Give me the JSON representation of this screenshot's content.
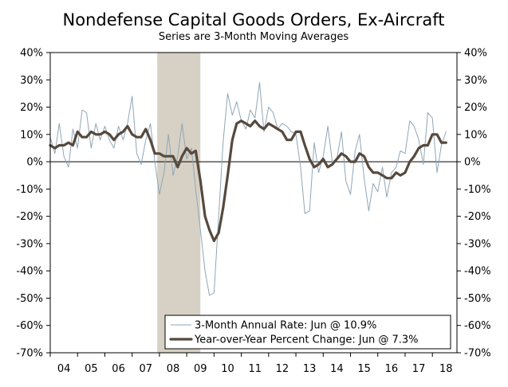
{
  "chart_data": {
    "type": "line",
    "title": "Nondefense Capital Goods Orders, Ex-Aircraft",
    "subtitle": "Series are 3-Month Moving Averages",
    "xlabel": "",
    "ylabel": "",
    "x_ticks": [
      "04",
      "05",
      "06",
      "07",
      "08",
      "09",
      "10",
      "11",
      "12",
      "13",
      "14",
      "15",
      "16",
      "17",
      "18"
    ],
    "x_range": [
      2004,
      2018.9
    ],
    "y_ticks": [
      "40%",
      "30%",
      "20%",
      "10%",
      "0%",
      "-10%",
      "-20%",
      "-30%",
      "-40%",
      "-50%",
      "-60%",
      "-70%"
    ],
    "y_tick_values": [
      40,
      30,
      20,
      10,
      0,
      -10,
      -20,
      -30,
      -40,
      -50,
      -60,
      -70
    ],
    "ylim": [
      -70,
      40
    ],
    "recession": {
      "start": 2007.92,
      "end": 2009.5,
      "color": "#d6d1c4"
    },
    "series": [
      {
        "name": "3-Month Annual Rate: Jun @ 10.9%",
        "color": "#8fa6b6",
        "points": [
          [
            2004.0,
            9
          ],
          [
            2004.17,
            3
          ],
          [
            2004.33,
            14
          ],
          [
            2004.5,
            2
          ],
          [
            2004.67,
            -2
          ],
          [
            2004.83,
            12
          ],
          [
            2005.0,
            5
          ],
          [
            2005.17,
            19
          ],
          [
            2005.33,
            18
          ],
          [
            2005.5,
            5
          ],
          [
            2005.67,
            14
          ],
          [
            2005.83,
            8
          ],
          [
            2006.0,
            13
          ],
          [
            2006.17,
            8
          ],
          [
            2006.33,
            5
          ],
          [
            2006.5,
            13
          ],
          [
            2006.67,
            8
          ],
          [
            2006.83,
            14
          ],
          [
            2007.0,
            24
          ],
          [
            2007.17,
            3
          ],
          [
            2007.33,
            -1
          ],
          [
            2007.5,
            8
          ],
          [
            2007.67,
            14
          ],
          [
            2007.83,
            0
          ],
          [
            2008.0,
            -12
          ],
          [
            2008.17,
            -4
          ],
          [
            2008.33,
            10
          ],
          [
            2008.5,
            -5
          ],
          [
            2008.67,
            2
          ],
          [
            2008.83,
            14
          ],
          [
            2009.0,
            1
          ],
          [
            2009.17,
            5
          ],
          [
            2009.33,
            -10
          ],
          [
            2009.5,
            -25
          ],
          [
            2009.67,
            -40
          ],
          [
            2009.83,
            -49
          ],
          [
            2010.0,
            -48
          ],
          [
            2010.17,
            -20
          ],
          [
            2010.33,
            7
          ],
          [
            2010.5,
            25
          ],
          [
            2010.67,
            17
          ],
          [
            2010.83,
            22
          ],
          [
            2011.0,
            15
          ],
          [
            2011.17,
            12
          ],
          [
            2011.33,
            19
          ],
          [
            2011.5,
            16
          ],
          [
            2011.67,
            29
          ],
          [
            2011.83,
            11
          ],
          [
            2012.0,
            20
          ],
          [
            2012.17,
            18
          ],
          [
            2012.33,
            12
          ],
          [
            2012.5,
            14
          ],
          [
            2012.67,
            13
          ],
          [
            2012.83,
            11
          ],
          [
            2013.0,
            10
          ],
          [
            2013.17,
            -2
          ],
          [
            2013.33,
            -19
          ],
          [
            2013.5,
            -18
          ],
          [
            2013.67,
            7
          ],
          [
            2013.83,
            -4
          ],
          [
            2014.0,
            2
          ],
          [
            2014.17,
            13
          ],
          [
            2014.33,
            0
          ],
          [
            2014.5,
            1
          ],
          [
            2014.67,
            11
          ],
          [
            2014.83,
            -7
          ],
          [
            2015.0,
            -12
          ],
          [
            2015.17,
            4
          ],
          [
            2015.33,
            10
          ],
          [
            2015.5,
            -6
          ],
          [
            2015.67,
            -18
          ],
          [
            2015.83,
            -8
          ],
          [
            2016.0,
            -11
          ],
          [
            2016.17,
            -2
          ],
          [
            2016.33,
            -13
          ],
          [
            2016.5,
            -4
          ],
          [
            2016.67,
            -2
          ],
          [
            2016.83,
            4
          ],
          [
            2017.0,
            3
          ],
          [
            2017.17,
            15
          ],
          [
            2017.33,
            13
          ],
          [
            2017.5,
            8
          ],
          [
            2017.67,
            -1
          ],
          [
            2017.83,
            18
          ],
          [
            2018.0,
            16
          ],
          [
            2018.17,
            -4
          ],
          [
            2018.33,
            6
          ],
          [
            2018.5,
            11
          ]
        ]
      },
      {
        "name": "Year-over-Year Percent Change: Jun @ 7.3%",
        "color": "#56493d",
        "points": [
          [
            2004.0,
            6
          ],
          [
            2004.17,
            5
          ],
          [
            2004.33,
            6
          ],
          [
            2004.5,
            6
          ],
          [
            2004.67,
            7
          ],
          [
            2004.83,
            6
          ],
          [
            2005.0,
            11
          ],
          [
            2005.17,
            9
          ],
          [
            2005.33,
            9
          ],
          [
            2005.5,
            11
          ],
          [
            2005.67,
            10
          ],
          [
            2005.83,
            10
          ],
          [
            2006.0,
            11
          ],
          [
            2006.17,
            10
          ],
          [
            2006.33,
            8
          ],
          [
            2006.5,
            10
          ],
          [
            2006.67,
            11
          ],
          [
            2006.83,
            13
          ],
          [
            2007.0,
            10
          ],
          [
            2007.17,
            9
          ],
          [
            2007.33,
            9
          ],
          [
            2007.5,
            12
          ],
          [
            2007.67,
            8
          ],
          [
            2007.83,
            3
          ],
          [
            2008.0,
            3
          ],
          [
            2008.17,
            2
          ],
          [
            2008.33,
            2
          ],
          [
            2008.5,
            2
          ],
          [
            2008.67,
            -2
          ],
          [
            2008.83,
            2
          ],
          [
            2009.0,
            5
          ],
          [
            2009.17,
            3
          ],
          [
            2009.33,
            4
          ],
          [
            2009.5,
            -7
          ],
          [
            2009.67,
            -20
          ],
          [
            2009.83,
            -25
          ],
          [
            2010.0,
            -29
          ],
          [
            2010.17,
            -26
          ],
          [
            2010.33,
            -17
          ],
          [
            2010.5,
            -5
          ],
          [
            2010.67,
            8
          ],
          [
            2010.83,
            14
          ],
          [
            2011.0,
            15
          ],
          [
            2011.17,
            14
          ],
          [
            2011.33,
            13
          ],
          [
            2011.5,
            15
          ],
          [
            2011.67,
            13
          ],
          [
            2011.83,
            12
          ],
          [
            2012.0,
            14
          ],
          [
            2012.17,
            13
          ],
          [
            2012.33,
            12
          ],
          [
            2012.5,
            11
          ],
          [
            2012.67,
            8
          ],
          [
            2012.83,
            8
          ],
          [
            2013.0,
            11
          ],
          [
            2013.17,
            11
          ],
          [
            2013.33,
            6
          ],
          [
            2013.5,
            1
          ],
          [
            2013.67,
            -2
          ],
          [
            2013.83,
            -1
          ],
          [
            2014.0,
            1
          ],
          [
            2014.17,
            -2
          ],
          [
            2014.33,
            -1
          ],
          [
            2014.5,
            1
          ],
          [
            2014.67,
            3
          ],
          [
            2014.83,
            2
          ],
          [
            2015.0,
            0
          ],
          [
            2015.17,
            0
          ],
          [
            2015.33,
            3
          ],
          [
            2015.5,
            2
          ],
          [
            2015.67,
            -2
          ],
          [
            2015.83,
            -4
          ],
          [
            2016.0,
            -4
          ],
          [
            2016.17,
            -5
          ],
          [
            2016.33,
            -6
          ],
          [
            2016.5,
            -6
          ],
          [
            2016.67,
            -4
          ],
          [
            2016.83,
            -5
          ],
          [
            2017.0,
            -4
          ],
          [
            2017.17,
            0
          ],
          [
            2017.33,
            2
          ],
          [
            2017.5,
            5
          ],
          [
            2017.67,
            6
          ],
          [
            2017.83,
            6
          ],
          [
            2018.0,
            10
          ],
          [
            2018.17,
            10
          ],
          [
            2018.33,
            7
          ],
          [
            2018.5,
            7
          ]
        ]
      }
    ]
  }
}
